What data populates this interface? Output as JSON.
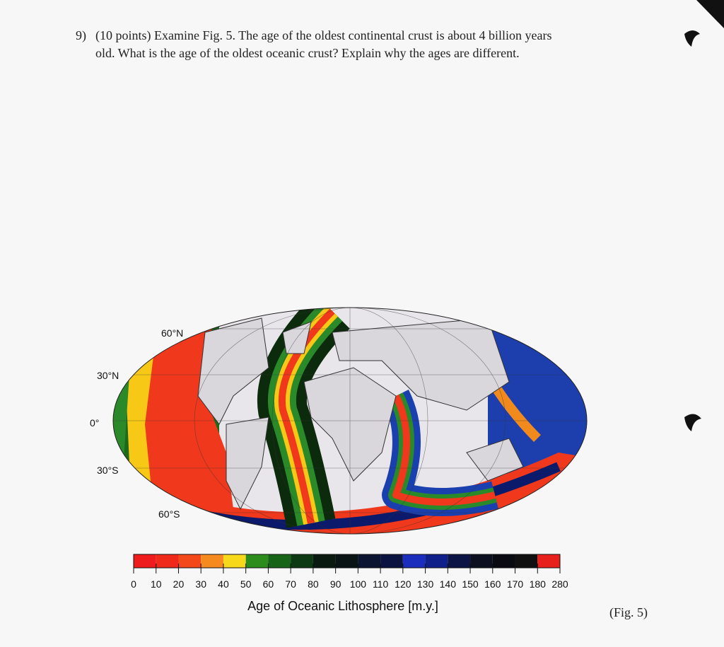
{
  "question": {
    "number": "9)",
    "lines": [
      "(10 points) Examine Fig. 5. The age of the oldest continental crust is about 4 billion years",
      "old. What is the age of the oldest oceanic crust? Explain why the ages are different."
    ]
  },
  "figure": {
    "latitude_labels": [
      "60°N",
      "30°N",
      "0°",
      "30°S",
      "60°S"
    ],
    "colorbar": {
      "ticks": [
        0,
        10,
        20,
        30,
        40,
        50,
        60,
        70,
        80,
        90,
        100,
        110,
        120,
        130,
        140,
        150,
        160,
        170,
        180,
        280
      ],
      "title": "Age of Oceanic Lithosphere [m.y.]"
    },
    "caption": "(Fig. 5)"
  }
}
